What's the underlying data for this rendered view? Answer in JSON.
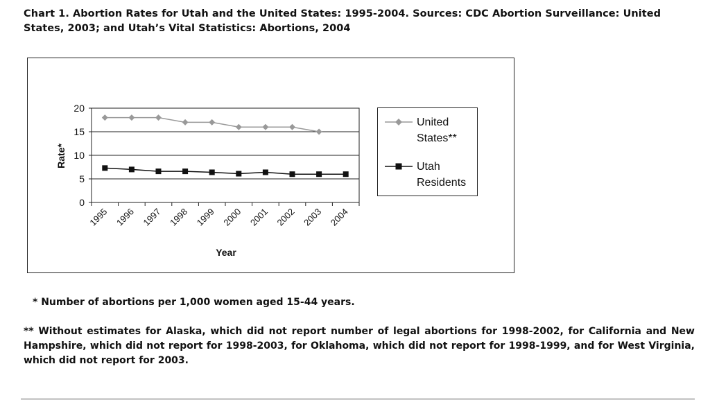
{
  "caption": "Chart 1. Abortion Rates for Utah and the United States: 1995-2004. Sources: CDC Abortion Surveillance: United States, 2003; and Utah’s Vital Statistics: Abortions, 2004",
  "chart_data": {
    "type": "line",
    "categories": [
      "1995",
      "1996",
      "1997",
      "1998",
      "1999",
      "2000",
      "2001",
      "2002",
      "2003",
      "2004"
    ],
    "series": [
      {
        "name": "United States**",
        "values": [
          18,
          18,
          18,
          17,
          17,
          16,
          16,
          16,
          15,
          null
        ],
        "color": "#999999",
        "marker": "diamond"
      },
      {
        "name": "Utah Residents",
        "values": [
          7.3,
          7.0,
          6.6,
          6.6,
          6.4,
          6.1,
          6.4,
          6.0,
          6.0,
          6.0
        ],
        "color": "#111111",
        "marker": "square"
      }
    ],
    "xlabel": "Year",
    "ylabel": "Rate*",
    "ylim": [
      0,
      20
    ],
    "yticks": [
      0,
      5,
      10,
      15,
      20
    ],
    "grid": "horizontal",
    "legend": "right"
  },
  "legend": {
    "us_line1": "United",
    "us_line2": "States**",
    "utah_line1": "Utah",
    "utah_line2": "Residents"
  },
  "footnotes": {
    "rate": "* Number of abortions per 1,000 women aged 15-44 years.",
    "estimates": "** Without estimates for Alaska, which did not report number of legal abortions for 1998-2002, for California and New Hampshire, which did not report for 1998-2003, for Oklahoma, which did not report for 1998-1999, and for West Virginia, which did not report for 2003."
  }
}
